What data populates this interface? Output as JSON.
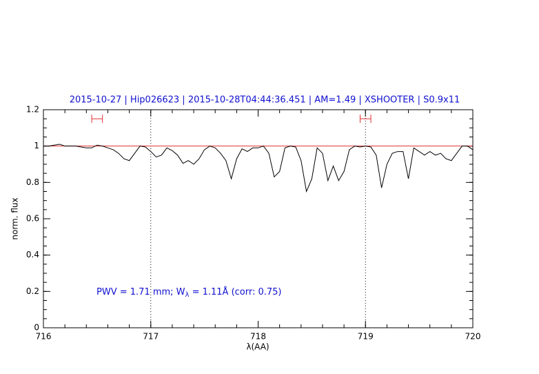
{
  "chart_data": {
    "type": "line",
    "title": "2015-10-27 | Hip026623 | 2015-10-28T04:44:36.451 | AM=1.49 | XSHOOTER | S0.9x11",
    "x_label": "λ(AA)",
    "y_label": "norm. flux",
    "annotation": [
      "PWV = 1.71 mm; W",
      "λ",
      " = 1.11Å (corr: 0.75)"
    ],
    "color": "#000000",
    "x": [
      716.0,
      716.05,
      716.1,
      716.15,
      716.2,
      716.25,
      716.3,
      716.35,
      716.4,
      716.45,
      716.5,
      716.55,
      716.6,
      716.65,
      716.7,
      716.75,
      716.8,
      716.85,
      716.9,
      716.95,
      717.0,
      717.05,
      717.1,
      717.15,
      717.2,
      717.25,
      717.3,
      717.35,
      717.4,
      717.45,
      717.5,
      717.55,
      717.6,
      717.65,
      717.7,
      717.75,
      717.8,
      717.85,
      717.9,
      717.95,
      718.0,
      718.05,
      718.1,
      718.15,
      718.2,
      718.25,
      718.3,
      718.35,
      718.4,
      718.45,
      718.5,
      718.55,
      718.6,
      718.65,
      718.7,
      718.75,
      718.8,
      718.85,
      718.9,
      718.95,
      719.0,
      719.05,
      719.1,
      719.15,
      719.2,
      719.25,
      719.3,
      719.35,
      719.4,
      719.45,
      719.5,
      719.55,
      719.6,
      719.65,
      719.7,
      719.75,
      719.8,
      719.85,
      719.9,
      719.95,
      720.0
    ],
    "values": [
      1.0,
      1.0,
      1.005,
      1.01,
      1.0,
      1.0,
      1.0,
      0.995,
      0.99,
      0.99,
      1.005,
      1.0,
      0.99,
      0.98,
      0.96,
      0.93,
      0.92,
      0.96,
      1.0,
      0.995,
      0.97,
      0.94,
      0.95,
      0.99,
      0.975,
      0.95,
      0.905,
      0.92,
      0.9,
      0.93,
      0.98,
      1.0,
      0.99,
      0.96,
      0.92,
      0.82,
      0.93,
      0.985,
      0.97,
      0.99,
      0.99,
      1.0,
      0.96,
      0.83,
      0.86,
      0.99,
      1.0,
      0.995,
      0.92,
      0.75,
      0.82,
      0.99,
      0.96,
      0.81,
      0.89,
      0.81,
      0.86,
      0.98,
      1.0,
      0.995,
      1.0,
      0.995,
      0.95,
      0.77,
      0.9,
      0.96,
      0.97,
      0.97,
      0.82,
      0.99,
      0.97,
      0.95,
      0.97,
      0.95,
      0.96,
      0.93,
      0.92,
      0.96,
      1.0,
      1.0,
      0.98
    ],
    "xlim": [
      716,
      720
    ],
    "ylim": [
      0,
      1.2
    ],
    "xticks": [
      716,
      717,
      718,
      719,
      720
    ],
    "yticks": [
      0,
      0.2,
      0.4,
      0.6,
      0.8,
      1,
      1.2
    ],
    "x_minor_step": 0.2,
    "y_minor_step": 0.05,
    "reference_line": {
      "value": 1,
      "color": "#e03030"
    },
    "vlines": [
      717,
      719
    ],
    "markers": [
      {
        "x": [
          716.45,
          716.55
        ],
        "y": 1.15
      },
      {
        "x": [
          718.95,
          719.05
        ],
        "y": 1.15
      }
    ],
    "marker_color": "#e03030"
  }
}
